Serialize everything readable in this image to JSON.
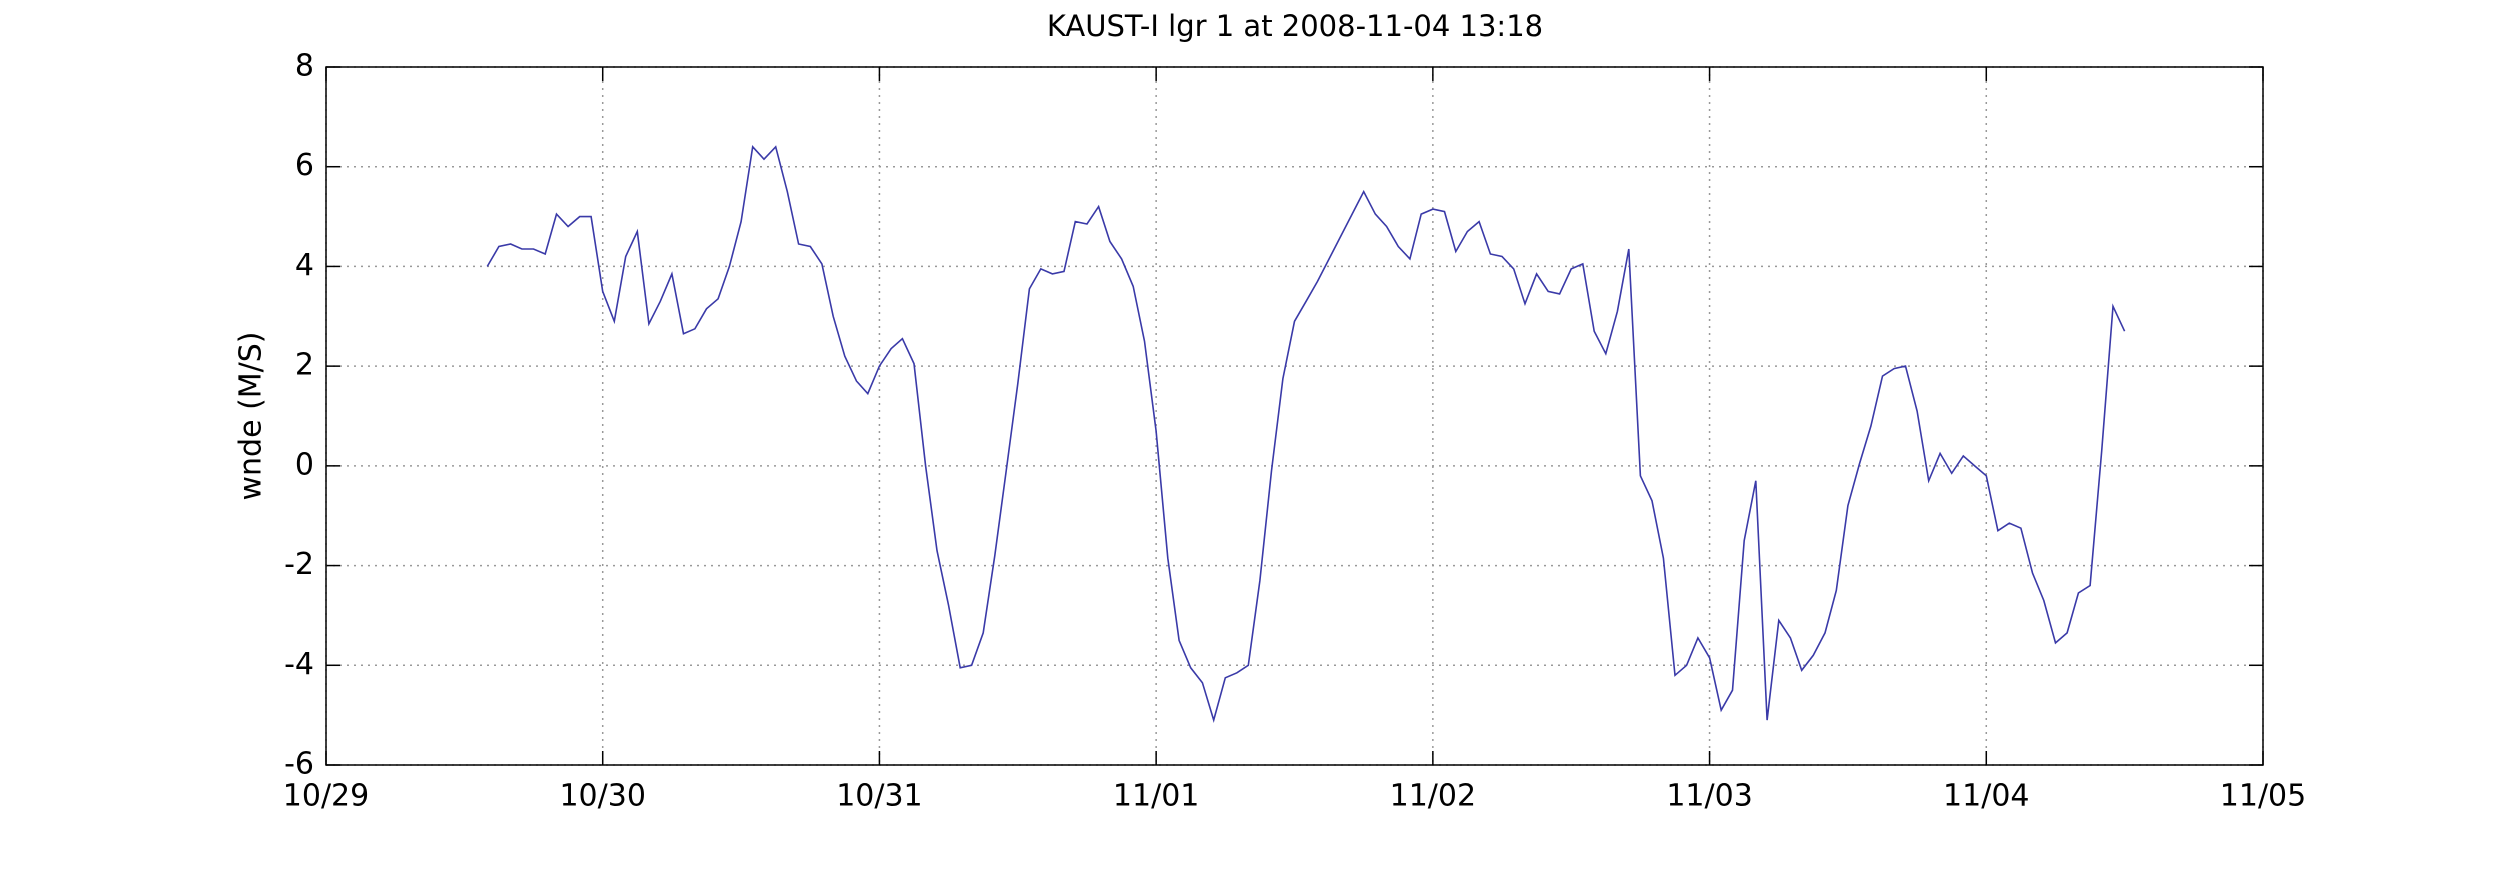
{
  "chart_data": {
    "type": "line",
    "title": "KAUST-I lgr 1 at 2008-11-04 13:18",
    "ylabel": "wnde (M/S)",
    "color": "#3a3aa8",
    "grid": true,
    "xlim": [
      0,
      7
    ],
    "ylim": [
      -6,
      8
    ],
    "xticks": [
      {
        "value": 0,
        "label": "10/29"
      },
      {
        "value": 1,
        "label": "10/30"
      },
      {
        "value": 2,
        "label": "10/31"
      },
      {
        "value": 3,
        "label": "11/01"
      },
      {
        "value": 4,
        "label": "11/02"
      },
      {
        "value": 5,
        "label": "11/03"
      },
      {
        "value": 6,
        "label": "11/04"
      },
      {
        "value": 7,
        "label": "11/05"
      }
    ],
    "yticks": [
      -6,
      -4,
      -2,
      0,
      2,
      4,
      6,
      8
    ],
    "x": [
      0.583,
      0.625,
      0.667,
      0.708,
      0.75,
      0.792,
      0.833,
      0.875,
      0.917,
      0.958,
      1,
      1.042,
      1.083,
      1.125,
      1.167,
      1.208,
      1.25,
      1.292,
      1.333,
      1.375,
      1.417,
      1.458,
      1.5,
      1.542,
      1.583,
      1.625,
      1.667,
      1.708,
      1.75,
      1.792,
      1.833,
      1.875,
      1.917,
      1.958,
      2,
      2.042,
      2.083,
      2.125,
      2.167,
      2.208,
      2.25,
      2.292,
      2.333,
      2.375,
      2.417,
      2.458,
      2.5,
      2.542,
      2.583,
      2.625,
      2.667,
      2.708,
      2.75,
      2.792,
      2.833,
      2.875,
      2.917,
      2.958,
      3,
      3.042,
      3.083,
      3.125,
      3.167,
      3.208,
      3.25,
      3.292,
      3.333,
      3.375,
      3.417,
      3.458,
      3.5,
      3.542,
      3.583,
      3.75,
      3.792,
      3.833,
      3.875,
      3.917,
      3.958,
      4,
      4.042,
      4.083,
      4.125,
      4.167,
      4.208,
      4.25,
      4.292,
      4.333,
      4.375,
      4.417,
      4.458,
      4.5,
      4.542,
      4.583,
      4.625,
      4.667,
      4.708,
      4.75,
      4.792,
      4.833,
      4.875,
      4.917,
      4.958,
      5,
      5.042,
      5.083,
      5.125,
      5.167,
      5.208,
      5.25,
      5.292,
      5.333,
      5.375,
      5.417,
      5.458,
      5.5,
      5.542,
      5.583,
      5.625,
      5.667,
      5.708,
      5.75,
      5.792,
      5.833,
      5.875,
      5.917,
      5.958,
      6,
      6.042,
      6.083,
      6.125,
      6.167,
      6.208,
      6.25,
      6.292,
      6.333,
      6.375,
      6.417,
      6.458,
      6.5
    ],
    "values": [
      4.0,
      4.4,
      4.45,
      4.35,
      4.35,
      4.25,
      5.05,
      4.8,
      5.0,
      5.0,
      3.5,
      2.9,
      4.2,
      4.7,
      2.85,
      3.3,
      3.85,
      2.65,
      2.75,
      3.15,
      3.35,
      4.0,
      4.9,
      6.4,
      6.15,
      6.4,
      5.5,
      4.45,
      4.4,
      4.05,
      3.0,
      2.2,
      1.7,
      1.45,
      2.0,
      2.35,
      2.55,
      2.05,
      0.0,
      -1.7,
      -2.8,
      -4.05,
      -4.0,
      -3.35,
      -1.8,
      -0.1,
      1.65,
      3.55,
      3.95,
      3.85,
      3.9,
      4.9,
      4.85,
      5.2,
      4.5,
      4.15,
      3.6,
      2.5,
      0.7,
      -1.85,
      -3.5,
      -4.05,
      -4.35,
      -5.1,
      -4.25,
      -4.15,
      -4.0,
      -2.3,
      -0.1,
      1.75,
      2.9,
      3.3,
      3.7,
      5.5,
      5.05,
      4.8,
      4.4,
      4.15,
      5.05,
      5.15,
      5.1,
      4.3,
      4.7,
      4.9,
      4.25,
      4.2,
      3.95,
      3.25,
      3.85,
      3.5,
      3.45,
      3.95,
      4.05,
      2.7,
      2.25,
      3.1,
      4.35,
      -0.2,
      -0.7,
      -1.85,
      -4.2,
      -4.0,
      -3.45,
      -3.85,
      -4.9,
      -4.5,
      -1.5,
      -0.3,
      -5.1,
      -3.1,
      -3.45,
      -4.1,
      -3.8,
      -3.35,
      -2.5,
      -0.8,
      0.05,
      0.8,
      1.8,
      1.95,
      2.0,
      1.1,
      -0.3,
      0.25,
      -0.15,
      0.2,
      0.0,
      -0.2,
      -1.3,
      -1.15,
      -1.25,
      -2.15,
      -2.7,
      -3.55,
      -3.35,
      -2.55,
      -2.4,
      0.3,
      3.2,
      2.7
    ]
  }
}
